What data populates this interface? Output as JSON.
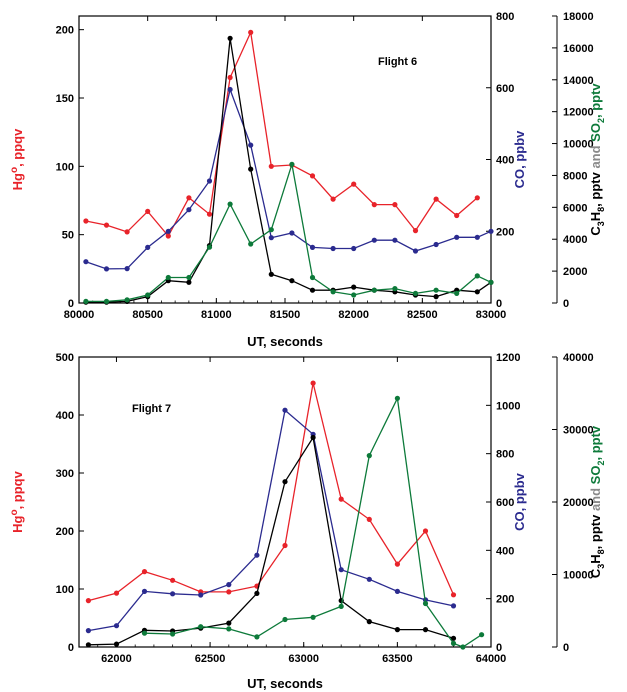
{
  "colors": {
    "hg": "#e8232a",
    "co": "#2b2b8f",
    "c3h8": "#000000",
    "so2": "#0d7a3a",
    "and": "#8a8a8a"
  },
  "chart_data": [
    {
      "type": "line",
      "annotation": "Flight 6",
      "xlabel": "UT, seconds",
      "xlim": [
        80000,
        83000
      ],
      "xticks": [
        "80000",
        "80500",
        "81000",
        "81500",
        "82000",
        "82500",
        "83000"
      ],
      "y1": {
        "label": "Hg",
        "label_sup": "o",
        "label_tail": ", ppqv",
        "lim": [
          0,
          210
        ],
        "ticks": [
          "0",
          "50",
          "100",
          "150",
          "200"
        ]
      },
      "y2": {
        "label": "CO, ppbv",
        "lim": [
          0,
          800
        ],
        "ticks": [
          "0",
          "200",
          "400",
          "600",
          "800"
        ]
      },
      "y3": {
        "lim": [
          0,
          18000
        ],
        "ticks": [
          "0",
          "2000",
          "4000",
          "6000",
          "8000",
          "10000",
          "12000",
          "14000",
          "16000",
          "18000"
        ],
        "label_parts": [
          {
            "id": "c3h8",
            "parts": [
              {
                "t": "C",
                "sub": false
              },
              {
                "t": "3",
                "sub": true
              },
              {
                "t": "H",
                "sub": false
              },
              {
                "t": "8",
                "sub": true
              },
              {
                "t": ", pptv",
                "sub": false
              }
            ]
          },
          {
            "id": "and",
            "parts": [
              {
                "t": " and ",
                "sub": false
              }
            ]
          },
          {
            "id": "so2",
            "parts": [
              {
                "t": "SO",
                "sub": false
              },
              {
                "t": "2",
                "sub": true
              },
              {
                "t": ", pptv",
                "sub": false
              }
            ]
          }
        ]
      },
      "series": [
        {
          "key": "hg",
          "axis": "y1",
          "x": [
            80050,
            80200,
            80350,
            80500,
            80650,
            80800,
            80950,
            81100,
            81250,
            81400,
            81550,
            81700,
            81850,
            82000,
            82150,
            82300,
            82450,
            82600,
            82750,
            82900
          ],
          "y": [
            60,
            57,
            52,
            67,
            49,
            77,
            65,
            165,
            198,
            100,
            101,
            93,
            76,
            87,
            72,
            72,
            53,
            76,
            64,
            77
          ]
        },
        {
          "key": "co",
          "axis": "y2",
          "x": [
            80050,
            80200,
            80350,
            80500,
            80650,
            80800,
            80950,
            81100,
            81250,
            81400,
            81550,
            81700,
            81850,
            82000,
            82150,
            82300,
            82450,
            82600,
            82750,
            82900,
            83000
          ],
          "y": [
            115,
            95,
            96,
            155,
            200,
            260,
            340,
            595,
            440,
            182,
            195,
            155,
            152,
            152,
            175,
            175,
            145,
            163,
            183,
            183,
            200
          ]
        },
        {
          "key": "c3h8",
          "axis": "y3",
          "x": [
            80050,
            80200,
            80350,
            80500,
            80650,
            80800,
            80950,
            81100,
            81250,
            81400,
            81550,
            81700,
            81850,
            82000,
            82150,
            82300,
            82450,
            82600,
            82750,
            82900,
            83000
          ],
          "y": [
            50,
            50,
            100,
            400,
            1400,
            1300,
            3600,
            16600,
            8400,
            1800,
            1400,
            800,
            800,
            1000,
            800,
            700,
            500,
            400,
            800,
            700,
            1300
          ]
        },
        {
          "key": "so2",
          "axis": "y3",
          "x": [
            80050,
            80200,
            80350,
            80500,
            80650,
            80800,
            80950,
            81100,
            81250,
            81400,
            81550,
            81700,
            81850,
            82000,
            82150,
            82300,
            82450,
            82600,
            82750,
            82900,
            83000
          ],
          "y": [
            100,
            100,
            200,
            500,
            1600,
            1600,
            3500,
            6200,
            3700,
            4600,
            8700,
            1600,
            700,
            500,
            800,
            900,
            600,
            800,
            600,
            1700,
            1300
          ]
        }
      ]
    },
    {
      "type": "line",
      "annotation": "Flight 7",
      "xlabel": "UT, seconds",
      "xlim": [
        61800,
        64000
      ],
      "xticks": [
        "62000",
        "62500",
        "63000",
        "63500",
        "64000"
      ],
      "y1": {
        "label": "Hg",
        "label_sup": "o",
        "label_tail": ", ppqv",
        "lim": [
          0,
          500
        ],
        "ticks": [
          "0",
          "100",
          "200",
          "300",
          "400",
          "500"
        ]
      },
      "y2": {
        "label": "CO, ppbv",
        "lim": [
          0,
          1200
        ],
        "ticks": [
          "0",
          "200",
          "400",
          "600",
          "800",
          "1000",
          "1200"
        ]
      },
      "y3": {
        "lim": [
          0,
          40000
        ],
        "ticks": [
          "0",
          "10000",
          "20000",
          "30000",
          "40000"
        ],
        "label_parts": [
          {
            "id": "c3h8",
            "parts": [
              {
                "t": "C",
                "sub": false
              },
              {
                "t": "3",
                "sub": true
              },
              {
                "t": "H",
                "sub": false
              },
              {
                "t": "8",
                "sub": true
              },
              {
                "t": ", pptv",
                "sub": false
              }
            ]
          },
          {
            "id": "and",
            "parts": [
              {
                "t": " and ",
                "sub": false
              }
            ]
          },
          {
            "id": "so2",
            "parts": [
              {
                "t": "SO",
                "sub": false
              },
              {
                "t": "2",
                "sub": true
              },
              {
                "t": ", pptv",
                "sub": false
              }
            ]
          }
        ]
      },
      "series": [
        {
          "key": "hg",
          "axis": "y1",
          "x": [
            61850,
            62000,
            62150,
            62300,
            62450,
            62600,
            62750,
            62900,
            63050,
            63200,
            63350,
            63500,
            63650,
            63800
          ],
          "y": [
            80,
            93,
            130,
            115,
            95,
            95,
            105,
            175,
            455,
            255,
            220,
            143,
            200,
            90
          ]
        },
        {
          "key": "co",
          "axis": "y2",
          "x": [
            61850,
            62000,
            62150,
            62300,
            62450,
            62600,
            62750,
            62900,
            63050,
            63200,
            63350,
            63500,
            63650,
            63800
          ],
          "y": [
            68,
            88,
            230,
            220,
            215,
            258,
            380,
            980,
            880,
            320,
            280,
            230,
            195,
            170
          ]
        },
        {
          "key": "c3h8",
          "axis": "y3",
          "x": [
            61850,
            62000,
            62150,
            62300,
            62450,
            62600,
            62750,
            62900,
            63050,
            63200,
            63350,
            63500,
            63650,
            63800
          ],
          "y": [
            300,
            400,
            2300,
            2200,
            2600,
            3300,
            7400,
            22800,
            28900,
            6400,
            3500,
            2400,
            2400,
            1200
          ]
        },
        {
          "key": "so2",
          "axis": "y3",
          "x": [
            62150,
            62300,
            62450,
            62600,
            62750,
            62900,
            63050,
            63200,
            63350,
            63500,
            63650,
            63800,
            63850,
            63950
          ],
          "y": [
            1900,
            1800,
            2800,
            2500,
            1400,
            3800,
            4100,
            5600,
            26400,
            34300,
            6000,
            500,
            0,
            1700
          ]
        }
      ]
    }
  ]
}
